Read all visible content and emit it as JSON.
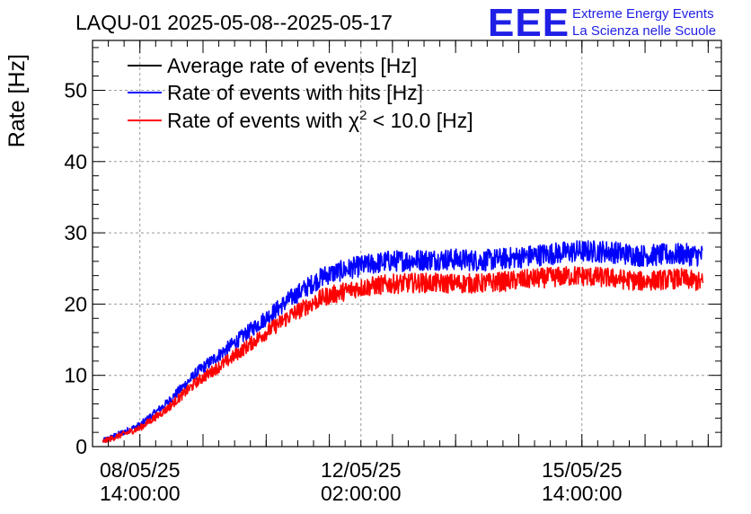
{
  "header": {
    "title": "LAQU-01 2025-05-08--2025-05-17",
    "logo_text": "EEE",
    "logo_line1": "Extreme Energy Events",
    "logo_line2": "La Scienza nelle Scuole"
  },
  "colors": {
    "logo": "#1f1fe6",
    "average": "#000000",
    "hits": "#0000ff",
    "chi2": "#ff0000",
    "grid": "#9a9a9a"
  },
  "chart_data": {
    "type": "line",
    "ylabel": "Rate [Hz]",
    "xlabel": "",
    "ylim": [
      0,
      57
    ],
    "xlim": [
      "2025-05-07 20:00:00",
      "2025-05-17 19:00:00"
    ],
    "grid": true,
    "legend_position": "top-left",
    "yticks": [
      "0",
      "10",
      "20",
      "30",
      "40",
      "50"
    ],
    "xticks": [
      {
        "at": "2025-05-08 14:00:00",
        "line1": "08/05/25",
        "line2": "14:00:00"
      },
      {
        "at": "2025-05-12 02:00:00",
        "line1": "12/05/25",
        "line2": "02:00:00"
      },
      {
        "at": "2025-05-15 14:00:00",
        "line1": "15/05/25",
        "line2": "14:00:00"
      }
    ],
    "legend": {
      "average": "Average rate of events [Hz]",
      "hits": "Rate of events with hits [Hz]",
      "chi2_prefix": "Rate of events with ",
      "chi2_symbol": "χ",
      "chi2_sup": "2",
      "chi2_suffix": " < 10.0 [Hz]"
    },
    "series": [
      {
        "name": "Rate of events with hits [Hz]",
        "color": "#0000ff",
        "points": [
          [
            "2025-05-08 00:00",
            0.8
          ],
          [
            "2025-05-08 14:00",
            3.0
          ],
          [
            "2025-05-09 00:00",
            6.0
          ],
          [
            "2025-05-09 12:00",
            10.5
          ],
          [
            "2025-05-10 00:00",
            14.0
          ],
          [
            "2025-05-10 12:00",
            17.5
          ],
          [
            "2025-05-11 00:00",
            21.0
          ],
          [
            "2025-05-11 12:00",
            24.0
          ],
          [
            "2025-05-12 00:00",
            25.2
          ],
          [
            "2025-05-12 12:00",
            26.0
          ],
          [
            "2025-05-13 00:00",
            26.2
          ],
          [
            "2025-05-13 12:00",
            26.3
          ],
          [
            "2025-05-14 00:00",
            26.1
          ],
          [
            "2025-05-14 12:00",
            26.5
          ],
          [
            "2025-05-15 00:00",
            27.0
          ],
          [
            "2025-05-15 12:00",
            27.4
          ],
          [
            "2025-05-16 00:00",
            27.4
          ],
          [
            "2025-05-16 12:00",
            26.8
          ],
          [
            "2025-05-17 04:00",
            27.0
          ],
          [
            "2025-05-17 12:00",
            26.8
          ]
        ]
      },
      {
        "name": "Rate of events with χ2 < 10.0 [Hz]",
        "color": "#ff0000",
        "points": [
          [
            "2025-05-08 00:00",
            0.7
          ],
          [
            "2025-05-08 14:00",
            2.6
          ],
          [
            "2025-05-09 00:00",
            5.2
          ],
          [
            "2025-05-09 12:00",
            9.2
          ],
          [
            "2025-05-10 00:00",
            12.2
          ],
          [
            "2025-05-10 12:00",
            15.5
          ],
          [
            "2025-05-11 00:00",
            18.6
          ],
          [
            "2025-05-11 12:00",
            21.0
          ],
          [
            "2025-05-12 00:00",
            22.2
          ],
          [
            "2025-05-12 12:00",
            22.8
          ],
          [
            "2025-05-13 00:00",
            23.0
          ],
          [
            "2025-05-13 12:00",
            22.9
          ],
          [
            "2025-05-14 00:00",
            22.9
          ],
          [
            "2025-05-14 12:00",
            23.3
          ],
          [
            "2025-05-15 00:00",
            23.7
          ],
          [
            "2025-05-15 12:00",
            24.0
          ],
          [
            "2025-05-16 00:00",
            23.7
          ],
          [
            "2025-05-16 12:00",
            23.2
          ],
          [
            "2025-05-17 04:00",
            23.6
          ],
          [
            "2025-05-17 12:00",
            23.0
          ]
        ]
      }
    ]
  }
}
